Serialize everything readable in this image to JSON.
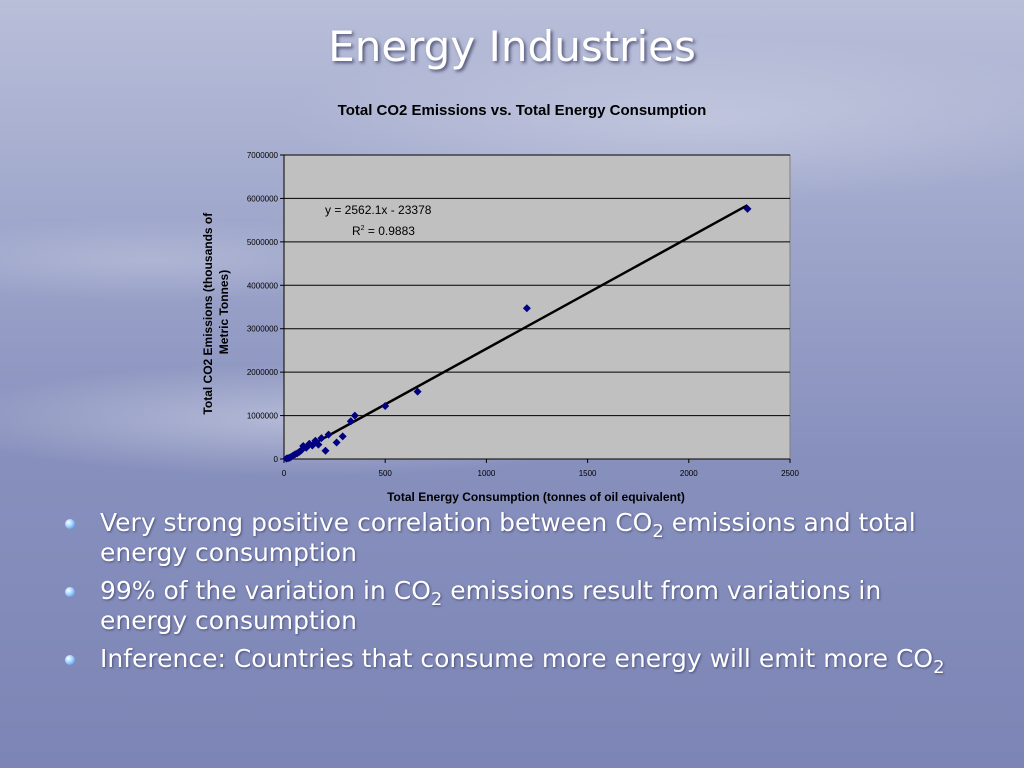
{
  "slide": {
    "title": "Energy Industries"
  },
  "bullets": [
    {
      "segments": [
        {
          "t": "Very strong positive correlation between CO"
        },
        {
          "t": "2",
          "sub": true
        },
        {
          "t": " emissions and total energy consumption"
        }
      ]
    },
    {
      "segments": [
        {
          "t": "99% of the variation in CO"
        },
        {
          "t": "2",
          "sub": true
        },
        {
          "t": " emissions result from variations in energy consumption"
        }
      ]
    },
    {
      "segments": [
        {
          "t": "Inference: Countries that consume more energy will emit more CO"
        },
        {
          "t": "2",
          "sub": true
        }
      ]
    }
  ],
  "colors": {
    "plot_bg": "#c0c0c0",
    "marker": "#000080",
    "trendline": "#000000",
    "title_text": "#ffffff",
    "bullet_text": "#ffffff"
  },
  "chart_data": {
    "type": "scatter",
    "title": "Total CO2 Emissions vs. Total Energy Consumption",
    "xlabel": "Total Energy Consumption (tonnes of oil equivalent)",
    "ylabel_lines": [
      "Total CO2 Emissions (thousands of",
      "Metric Tonnes)"
    ],
    "xlim": [
      0,
      2500
    ],
    "ylim": [
      0,
      7000000
    ],
    "xticks": [
      0,
      500,
      1000,
      1500,
      2000,
      2500
    ],
    "yticks": [
      0,
      1000000,
      2000000,
      3000000,
      4000000,
      5000000,
      6000000,
      7000000
    ],
    "grid": "horizontal",
    "marker": "diamond",
    "points": [
      [
        2290,
        5760000
      ],
      [
        1200,
        3470000
      ],
      [
        660,
        1550000
      ],
      [
        500,
        1220000
      ],
      [
        350,
        1000000
      ],
      [
        330,
        870000
      ],
      [
        290,
        520000
      ],
      [
        260,
        380000
      ],
      [
        220,
        560000
      ],
      [
        205,
        190000
      ],
      [
        185,
        480000
      ],
      [
        170,
        330000
      ],
      [
        155,
        420000
      ],
      [
        140,
        310000
      ],
      [
        125,
        350000
      ],
      [
        110,
        260000
      ],
      [
        95,
        300000
      ],
      [
        85,
        200000
      ],
      [
        75,
        160000
      ],
      [
        65,
        130000
      ],
      [
        55,
        110000
      ],
      [
        45,
        80000
      ],
      [
        35,
        50000
      ],
      [
        28,
        30000
      ],
      [
        20,
        20000
      ],
      [
        12,
        10000
      ]
    ],
    "trendline": {
      "type": "linear",
      "slope": 2562.1,
      "intercept": -23378,
      "x_range": [
        10,
        2290
      ],
      "equation_label": "y = 2562.1x - 23378",
      "r2_prefix": "R",
      "r2_sup": "2",
      "r2_value": " = 0.9883"
    }
  }
}
